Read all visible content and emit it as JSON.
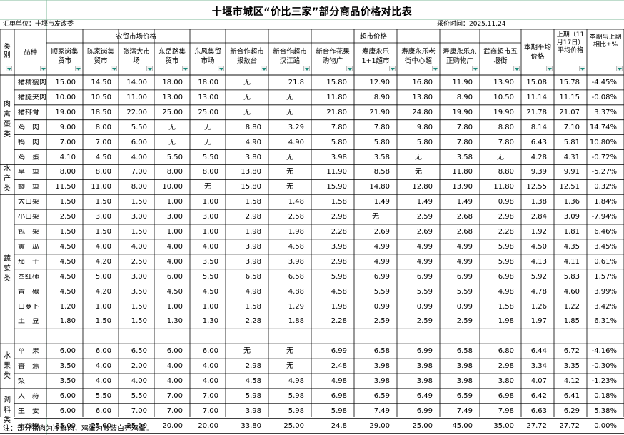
{
  "title": "十堰市城区“价比三家”部分商品价格对比表",
  "unit_label": "汇单单位：十堰市发改委",
  "date_label": "采价时间：2025.11.24",
  "headers": {
    "category": "类别",
    "name": "品种",
    "group_market": "农贸市场价格",
    "group_super": "超市价格",
    "markets": [
      "顺家岗集贸市",
      "陈家岗集贸市",
      "张湾大市场",
      "东岳路集贸市",
      "东风集贸市场"
    ],
    "supers": [
      "新合作超市报敖台",
      "新合作超市汉江路",
      "新合作花果购物广",
      "寿康永乐1+1超市",
      "寿康永乐老街中心超",
      "寿康永乐东正购物广",
      "武商超市五堰街"
    ],
    "cur": "本期平均价格",
    "prev": "上期（11月17日）平均价格",
    "chg": "本期与上期相比±%"
  },
  "categories": [
    {
      "label": "肉禽蛋类",
      "start": 0,
      "count": 6
    },
    {
      "label": "水产类",
      "start": 6,
      "count": 2
    },
    {
      "label": "蔬菜类",
      "start": 8,
      "count": 10
    },
    {
      "label": "水果类",
      "start": 18,
      "count": 3
    },
    {
      "label": "调料类",
      "start": 21,
      "count": 3
    }
  ],
  "rows": [
    {
      "name": "猪精瘦肉",
      "vals": [
        "15.00",
        "14.50",
        "14.00",
        "18.00",
        "18.00",
        "无",
        "21.8",
        "15.80",
        "12.90",
        "16.80",
        "11.90",
        "13.90"
      ],
      "cur": "15.08",
      "prev": "15.78",
      "chg": "-4.45%"
    },
    {
      "name": "猪腿夹肉",
      "vals": [
        "10.00",
        "10.50",
        "11.00",
        "13.00",
        "13.00",
        "无",
        "无",
        "11.80",
        "8.90",
        "13.80",
        "8.90",
        "10.50"
      ],
      "cur": "11.14",
      "prev": "11.15",
      "chg": "-0.08%"
    },
    {
      "name": "猪排骨",
      "vals": [
        "19.00",
        "18.50",
        "22.00",
        "25.00",
        "25.00",
        "无",
        "无",
        "21.80",
        "21.90",
        "24.80",
        "19.90",
        "19.90"
      ],
      "cur": "21.78",
      "prev": "21.07",
      "chg": "3.37%"
    },
    {
      "name": "鸡　肉",
      "vals": [
        "9.00",
        "8.00",
        "5.50",
        "无",
        "无",
        "8.80",
        "3.29",
        "7.80",
        "7.80",
        "9.80",
        "7.80",
        "8.80"
      ],
      "cur": "8.14",
      "prev": "7.10",
      "chg": "14.74%"
    },
    {
      "name": "鸭　肉",
      "vals": [
        "7.00",
        "7.00",
        "6.00",
        "无",
        "无",
        "4.90",
        "4.90",
        "5.80",
        "5.80",
        "5.80",
        "7.80",
        "7.80"
      ],
      "cur": "6.43",
      "prev": "5.81",
      "chg": "10.80%"
    },
    {
      "name": "鸡　蛋",
      "vals": [
        "4.10",
        "4.50",
        "4.00",
        "5.50",
        "5.50",
        "3.80",
        "无",
        "3.98",
        "3.58",
        "无",
        "3.58",
        "无"
      ],
      "cur": "4.28",
      "prev": "4.31",
      "chg": "-0.72%"
    },
    {
      "name": "草　鱼",
      "vals": [
        "8.00",
        "8.00",
        "7.00",
        "8.00",
        "8.00",
        "13.80",
        "无",
        "11.90",
        "8.58",
        "无",
        "11.80",
        "8.80"
      ],
      "cur": "9.39",
      "prev": "9.91",
      "chg": "-5.27%"
    },
    {
      "name": "鲫　鱼",
      "vals": [
        "11.50",
        "11.00",
        "8.00",
        "10.00",
        "无",
        "15.80",
        "无",
        "15.90",
        "14.80",
        "12.80",
        "13.90",
        "11.80"
      ],
      "cur": "12.55",
      "prev": "12.51",
      "chg": "0.32%"
    },
    {
      "name": "大白菜",
      "vals": [
        "1.50",
        "1.50",
        "1.50",
        "1.00",
        "1.00",
        "1.58",
        "1.48",
        "1.58",
        "1.49",
        "1.49",
        "1.49",
        "0.98"
      ],
      "cur": "1.38",
      "prev": "1.36",
      "chg": "1.84%"
    },
    {
      "name": "小白菜",
      "vals": [
        "2.50",
        "3.00",
        "3.00",
        "3.00",
        "3.00",
        "2.98",
        "2.58",
        "2.98",
        "无",
        "2.59",
        "2.68",
        "2.98"
      ],
      "cur": "2.84",
      "prev": "3.09",
      "chg": "-7.94%"
    },
    {
      "name": "包　菜",
      "vals": [
        "1.50",
        "1.50",
        "1.50",
        "1.00",
        "1.00",
        "1.98",
        "1.98",
        "2.28",
        "2.69",
        "2.69",
        "2.68",
        "2.28"
      ],
      "cur": "1.92",
      "prev": "1.81",
      "chg": "6.46%"
    },
    {
      "name": "黄　瓜",
      "vals": [
        "4.50",
        "4.00",
        "4.00",
        "4.00",
        "4.00",
        "3.98",
        "4.58",
        "3.98",
        "4.99",
        "4.99",
        "4.99",
        "5.98"
      ],
      "cur": "4.50",
      "prev": "4.35",
      "chg": "3.45%"
    },
    {
      "name": "茄　子",
      "vals": [
        "4.50",
        "4.20",
        "2.50",
        "4.00",
        "3.50",
        "3.98",
        "3.98",
        "2.98",
        "4.99",
        "4.99",
        "4.99",
        "5.98"
      ],
      "cur": "4.13",
      "prev": "4.11",
      "chg": "0.61%"
    },
    {
      "name": "西红柿",
      "vals": [
        "4.50",
        "5.00",
        "3.00",
        "6.00",
        "5.50",
        "6.58",
        "6.58",
        "5.98",
        "6.99",
        "6.99",
        "6.99",
        "6.98"
      ],
      "cur": "5.92",
      "prev": "5.83",
      "chg": "1.57%"
    },
    {
      "name": "青　椒",
      "vals": [
        "4.50",
        "4.20",
        "3.50",
        "4.50",
        "4.50",
        "4.98",
        "4.88",
        "4.58",
        "5.59",
        "5.59",
        "5.59",
        "4.98"
      ],
      "cur": "4.78",
      "prev": "4.60",
      "chg": "3.99%"
    },
    {
      "name": "白萝卜",
      "vals": [
        "1.20",
        "1.00",
        "1.50",
        "1.00",
        "1.00",
        "1.58",
        "1.29",
        "1.98",
        "0.99",
        "0.99",
        "0.99",
        "1.58"
      ],
      "cur": "1.26",
      "prev": "1.22",
      "chg": "3.42%"
    },
    {
      "name": "土　豆",
      "vals": [
        "1.80",
        "1.50",
        "1.50",
        "1.30",
        "1.30",
        "2.28",
        "1.88",
        "2.28",
        "2.59",
        "2.59",
        "2.59",
        "1.98"
      ],
      "cur": "1.97",
      "prev": "1.85",
      "chg": "6.31%"
    },
    {
      "name": "",
      "vals": [
        "",
        "",
        "",
        "",
        "",
        "",
        "",
        "",
        "",
        "",
        "",
        ""
      ],
      "cur": "",
      "prev": "",
      "chg": ""
    },
    {
      "name": "苹　果",
      "vals": [
        "6.00",
        "6.00",
        "6.50",
        "6.00",
        "6.00",
        "无",
        "无",
        "6.99",
        "6.58",
        "6.99",
        "6.58",
        "6.80"
      ],
      "cur": "6.44",
      "prev": "6.72",
      "chg": "-4.16%"
    },
    {
      "name": "香　蕉",
      "vals": [
        "3.50",
        "4.00",
        "2.00",
        "4.00",
        "4.00",
        "2.98",
        "无",
        "2.48",
        "3.98",
        "3.98",
        "3.98",
        "2.98"
      ],
      "cur": "3.34",
      "prev": "3.35",
      "chg": "-0.30%"
    },
    {
      "name": "梨",
      "vals": [
        "3.50",
        "4.00",
        "4.00",
        "4.00",
        "4.00",
        "4.58",
        "4.98",
        "4.98",
        "3.98",
        "3.98",
        "3.98",
        "3.80"
      ],
      "cur": "4.07",
      "prev": "4.12",
      "chg": "-1.23%"
    },
    {
      "name": "大　蒜",
      "vals": [
        "6.00",
        "5.50",
        "5.50",
        "7.00",
        "7.00",
        "5.98",
        "5.98",
        "6.98",
        "6.59",
        "6.49",
        "6.59",
        "6.98"
      ],
      "cur": "6.42",
      "prev": "6.41",
      "chg": "0.18%"
    },
    {
      "name": "生　姜",
      "vals": [
        "6.00",
        "6.00",
        "7.00",
        "7.00",
        "7.00",
        "3.98",
        "5.98",
        "5.98",
        "7.49",
        "6.99",
        "7.49",
        "7.98"
      ],
      "cur": "6.63",
      "prev": "6.29",
      "chg": "5.38%"
    },
    {
      "name": "干辣椒",
      "vals": [
        "25.00",
        "25.00",
        "25.00",
        "20.00",
        "20.00",
        "33.80",
        "25.00",
        "24.8",
        "29.00",
        "25.00",
        "45.00",
        "35.00"
      ],
      "cur": "27.72",
      "prev": "27.72",
      "chg": "0.00%"
    }
  ],
  "note": "注：部分猪肉为冷鲜肉，鸡蛋为散装白壳鸡蛋。"
}
